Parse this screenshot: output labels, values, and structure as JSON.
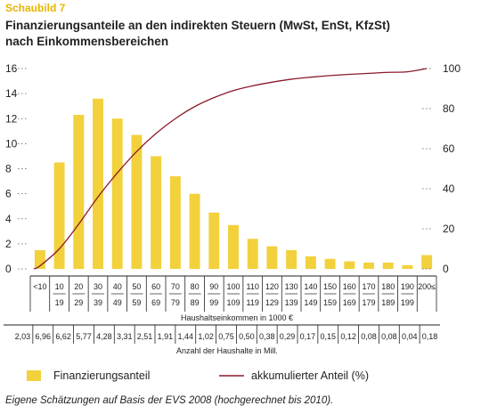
{
  "header": {
    "tag": "Schaubild 7",
    "title_line1": "Finanzierungsanteile an den indirekten Steuern (MwSt, EnSt, KfzSt)",
    "title_line2": "nach Einkommensbereichen"
  },
  "footnote": "Eigene Schätzungen auf Basis der EVS 2008 (hochgerechnet bis 2010).",
  "colors": {
    "bar": "#f2d13c",
    "line": "#8a1a2a"
  },
  "chart_data": {
    "type": "bar",
    "categories": [
      [
        "<10",
        ""
      ],
      [
        "10",
        "19"
      ],
      [
        "20",
        "29"
      ],
      [
        "30",
        "39"
      ],
      [
        "40",
        "49"
      ],
      [
        "50",
        "59"
      ],
      [
        "60",
        "69"
      ],
      [
        "70",
        "79"
      ],
      [
        "80",
        "89"
      ],
      [
        "90",
        "99"
      ],
      [
        "100",
        "109"
      ],
      [
        "110",
        "119"
      ],
      [
        "120",
        "129"
      ],
      [
        "130",
        "139"
      ],
      [
        "140",
        "149"
      ],
      [
        "150",
        "159"
      ],
      [
        "160",
        "169"
      ],
      [
        "170",
        "179"
      ],
      [
        "180",
        "189"
      ],
      [
        "190",
        "199"
      ],
      [
        "200≤",
        ""
      ]
    ],
    "series": [
      {
        "name": "Finanzierungsanteil",
        "type": "bar",
        "axis": "left",
        "values": [
          1.5,
          8.5,
          12.3,
          13.6,
          12.0,
          10.7,
          9.0,
          7.4,
          6.0,
          4.5,
          3.5,
          2.4,
          1.8,
          1.5,
          1.0,
          0.8,
          0.6,
          0.5,
          0.5,
          0.3,
          1.1
        ]
      },
      {
        "name": "akkumulierter Anteil",
        "type": "line",
        "axis": "right",
        "values": [
          1.5,
          10.0,
          22.3,
          35.9,
          47.9,
          58.6,
          67.6,
          75.0,
          81.0,
          85.5,
          89.0,
          91.4,
          93.2,
          94.7,
          95.7,
          96.5,
          97.1,
          97.6,
          98.1,
          98.4,
          100
        ]
      }
    ],
    "ylim_left": [
      0,
      16
    ],
    "yticks_left": [
      "0",
      "2",
      "4",
      "6",
      "8",
      "10",
      "12",
      "14",
      "16"
    ],
    "ylim_right": [
      0,
      100
    ],
    "yticks_right": [
      "0",
      "20",
      "40",
      "60",
      "80",
      "100"
    ],
    "xlabel": "Haushaltseinkommen in 1000 €",
    "households_label": "Anzahl der Haushalte in Mill.",
    "households": [
      "2,03",
      "6,96",
      "6,62",
      "5,77",
      "4,28",
      "3,31",
      "2,51",
      "1,91",
      "1,44",
      "1,02",
      "0,75",
      "0,50",
      "0,38",
      "0,29",
      "0,17",
      "0,15",
      "0,12",
      "0,08",
      "0,08",
      "0,04",
      "0,18"
    ],
    "legend": [
      "Finanzierungsanteil",
      "akkumulierter Anteil (%)"
    ],
    "legend_position": "bottom",
    "grid": false
  }
}
